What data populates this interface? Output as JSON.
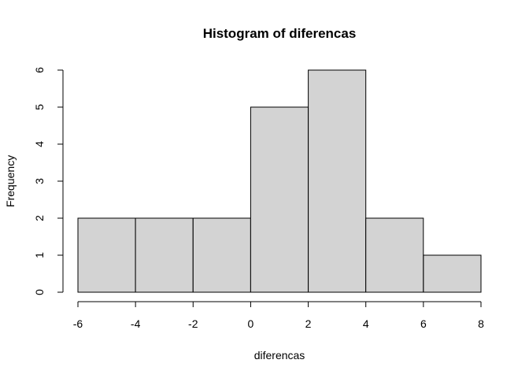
{
  "chart_data": {
    "type": "bar",
    "title": "Histogram of diferencas",
    "xlabel": "diferencas",
    "ylabel": "Frequency",
    "bin_edges": [
      -6,
      -4,
      -2,
      0,
      2,
      4,
      6,
      8
    ],
    "values": [
      2,
      2,
      2,
      5,
      6,
      2,
      1
    ],
    "xlim": [
      -6,
      8
    ],
    "ylim": [
      0,
      6
    ],
    "x_ticks": [
      -6,
      -4,
      -2,
      0,
      2,
      4,
      6,
      8
    ],
    "y_ticks": [
      0,
      1,
      2,
      3,
      4,
      5,
      6
    ],
    "grid": false,
    "bar_fill": "#d3d3d3",
    "bar_stroke": "#000000"
  }
}
